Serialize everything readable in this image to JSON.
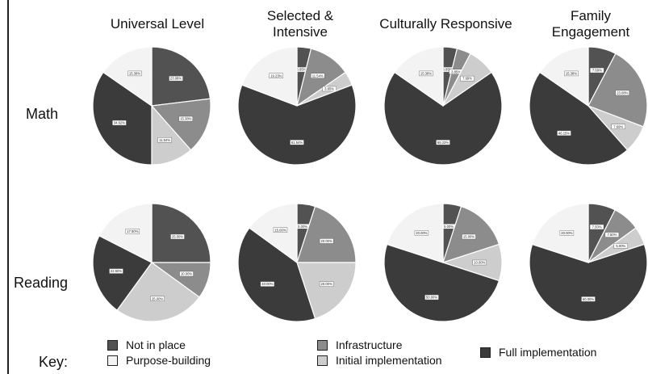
{
  "chart_data": {
    "type": "pie",
    "columns": [
      "Universal Level",
      "Selected & Intensive",
      "Culturally Responsive",
      "Family Engagement"
    ],
    "rows": [
      "Math",
      "Reading"
    ],
    "key_label": "Key:",
    "categories": [
      "Not in place",
      "Infrastructure",
      "Full implementation",
      "Purpose-building",
      "Initial implementation"
    ],
    "colors": {
      "Not in place": "#525252",
      "Infrastructure": "#8c8c8c",
      "Initial implementation": "#cdcdcd",
      "Full implementation": "#3b3b3b",
      "Purpose-building": "#f3f3f3"
    },
    "pies": [
      {
        "row": "Math",
        "column": "Universal Level",
        "slices": [
          {
            "category": "Not in place",
            "value": 23.08
          },
          {
            "category": "Infrastructure",
            "value": 15.38
          },
          {
            "category": "Initial implementation",
            "value": 11.54
          },
          {
            "category": "Full implementation",
            "value": 34.62
          },
          {
            "category": "Purpose-building",
            "value": 15.38
          }
        ]
      },
      {
        "row": "Math",
        "column": "Selected & Intensive",
        "slices": [
          {
            "category": "Not in place",
            "value": 3.85
          },
          {
            "category": "Infrastructure",
            "value": 11.54
          },
          {
            "category": "Initial implementation",
            "value": 3.85
          },
          {
            "category": "Full implementation",
            "value": 61.54
          },
          {
            "category": "Purpose-building",
            "value": 19.23
          }
        ]
      },
      {
        "row": "Math",
        "column": "Culturally Responsive",
        "slices": [
          {
            "category": "Not in place",
            "value": 3.85
          },
          {
            "category": "Infrastructure",
            "value": 3.85
          },
          {
            "category": "Initial implementation",
            "value": 7.69
          },
          {
            "category": "Full implementation",
            "value": 69.23
          },
          {
            "category": "Purpose-building",
            "value": 15.38
          }
        ]
      },
      {
        "row": "Math",
        "column": "Family Engagement",
        "slices": [
          {
            "category": "Not in place",
            "value": 7.69
          },
          {
            "category": "Infrastructure",
            "value": 23.08
          },
          {
            "category": "Initial implementation",
            "value": 7.69
          },
          {
            "category": "Full implementation",
            "value": 46.15
          },
          {
            "category": "Purpose-building",
            "value": 15.38
          }
        ]
      },
      {
        "row": "Reading",
        "column": "Universal Level",
        "slices": [
          {
            "category": "Not in place",
            "value": 25.0
          },
          {
            "category": "Infrastructure",
            "value": 10.0
          },
          {
            "category": "Initial implementation",
            "value": 25.0
          },
          {
            "category": "Full implementation",
            "value": 22.5
          },
          {
            "category": "Purpose-building",
            "value": 17.5
          }
        ]
      },
      {
        "row": "Reading",
        "column": "Selected & Intensive",
        "slices": [
          {
            "category": "Not in place",
            "value": 5.0
          },
          {
            "category": "Infrastructure",
            "value": 20.0
          },
          {
            "category": "Initial implementation",
            "value": 20.0
          },
          {
            "category": "Full implementation",
            "value": 40.0
          },
          {
            "category": "Purpose-building",
            "value": 15.0
          }
        ]
      },
      {
        "row": "Reading",
        "column": "Culturally Responsive",
        "slices": [
          {
            "category": "Not in place",
            "value": 5.0
          },
          {
            "category": "Infrastructure",
            "value": 15.0
          },
          {
            "category": "Initial implementation",
            "value": 10.0
          },
          {
            "category": "Full implementation",
            "value": 50.0
          },
          {
            "category": "Purpose-building",
            "value": 20.0
          }
        ]
      },
      {
        "row": "Reading",
        "column": "Family Engagement",
        "slices": [
          {
            "category": "Not in place",
            "value": 7.5
          },
          {
            "category": "Infrastructure",
            "value": 7.5
          },
          {
            "category": "Initial implementation",
            "value": 5.0
          },
          {
            "category": "Full implementation",
            "value": 60.0
          },
          {
            "category": "Purpose-building",
            "value": 20.0
          }
        ]
      }
    ]
  }
}
